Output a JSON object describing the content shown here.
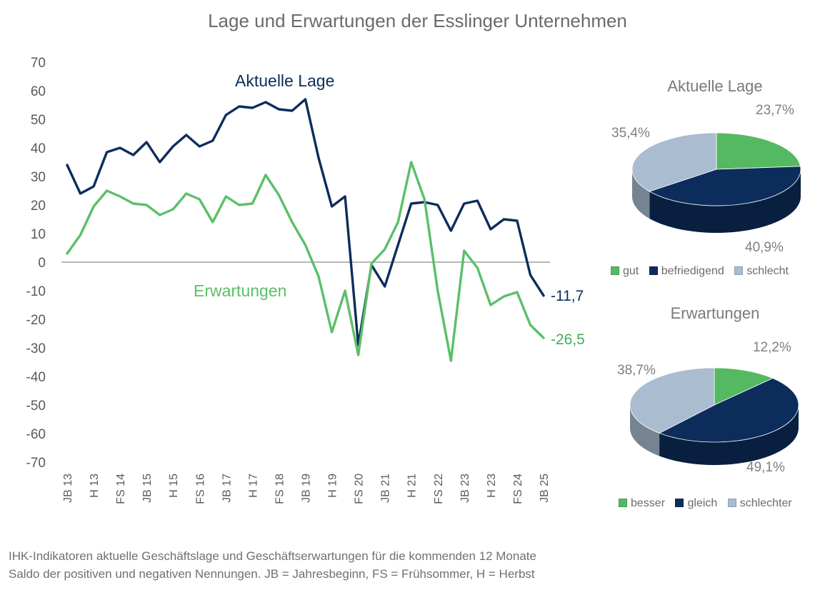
{
  "title": "Lage und Erwartungen der Esslinger Unternehmen",
  "chart_data": [
    {
      "type": "line",
      "title": "Lage und Erwartungen der Esslinger Unternehmen",
      "ylim": [
        -70,
        70
      ],
      "yticks": [
        "70",
        "60",
        "50",
        "40",
        "30",
        "20",
        "10",
        "0",
        "-10",
        "-20",
        "-30",
        "-40",
        "-50",
        "-60",
        "-70"
      ],
      "xtick_labels": [
        "JB 13",
        "H 13",
        "FS 14",
        "JB 15",
        "H 15",
        "FS 16",
        "JB 17",
        "H 17",
        "FS 18",
        "JB 19",
        "H 19",
        "FS 20",
        "JB 21",
        "H 21",
        "FS 22",
        "JB 23",
        "H 23",
        "FS 24",
        "JB 25"
      ],
      "series": [
        {
          "name": "Aktuelle Lage",
          "color": "#0c2d5c",
          "values": [
            34,
            24,
            26.5,
            38.5,
            40,
            37.5,
            42,
            35,
            40.5,
            44.5,
            40.5,
            42.5,
            51.5,
            54.5,
            54,
            56,
            53.5,
            53,
            57,
            36.5,
            19.5,
            23,
            -29,
            -1,
            -8.5,
            6,
            20.5,
            21,
            20,
            11,
            20.5,
            21.5,
            11.5,
            15,
            14.5,
            -4.5,
            -11.7
          ],
          "end_label": "-11,7"
        },
        {
          "name": "Erwartungen",
          "color": "#5cbf68",
          "values": [
            3,
            9.5,
            19.5,
            25,
            23,
            20.5,
            20,
            16.5,
            18.5,
            24,
            22,
            14,
            23,
            20,
            20.5,
            30.5,
            23.5,
            14,
            6,
            -5,
            -24.5,
            -10,
            -32.5,
            -0.5,
            4.5,
            14,
            35,
            22,
            -10,
            -34.5,
            4,
            -2,
            -15,
            -12,
            -10.5,
            -22,
            -26.5
          ],
          "end_label": "-26,5"
        }
      ]
    },
    {
      "type": "pie",
      "title": "Aktuelle Lage",
      "labels": [
        "gut",
        "befriedigend",
        "schlecht"
      ],
      "values": [
        23.7,
        40.9,
        35.4
      ],
      "value_labels": [
        "23,7%",
        "40,9%",
        "35,4%"
      ],
      "colors": [
        "#55b962",
        "#0c2d5c",
        "#a9bcd0"
      ]
    },
    {
      "type": "pie",
      "title": "Erwartungen",
      "labels": [
        "besser",
        "gleich",
        "schlechter"
      ],
      "values": [
        12.2,
        49.1,
        38.7
      ],
      "value_labels": [
        "12,2%",
        "49,1%",
        "38,7%"
      ],
      "colors": [
        "#55b962",
        "#0c2d5c",
        "#a9bcd0"
      ]
    }
  ],
  "footnote": {
    "line1": "IHK-Indikatoren aktuelle Geschäftslage und Geschäftserwartungen für die kommenden 12 Monate",
    "line2": "Saldo der positiven und negativen Nennungen. JB = Jahresbeginn, FS = Frühsommer, H = Herbst"
  }
}
